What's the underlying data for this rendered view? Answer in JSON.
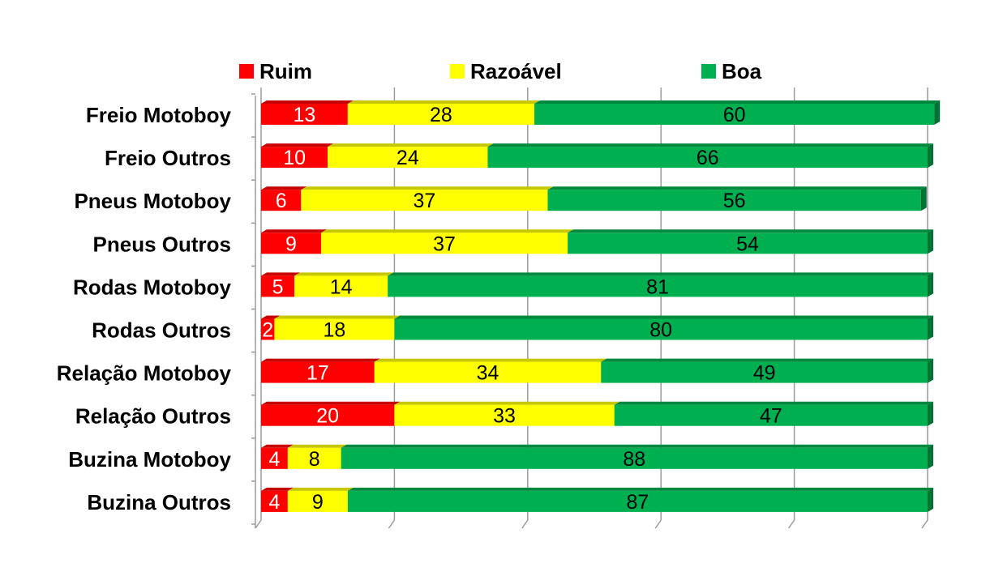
{
  "chart_data": {
    "type": "bar",
    "orientation": "horizontal",
    "stacked": true,
    "categories": [
      "Freio Motoboy",
      "Freio Outros",
      "Pneus Motoboy",
      "Pneus Outros",
      "Rodas Motoboy",
      "Rodas Outros",
      "Relação Motoboy",
      "Relação Outros",
      "Buzina Motoboy",
      "Buzina Outros"
    ],
    "series": [
      {
        "name": "Ruim",
        "color": "#ff0000",
        "label_color": "#ffffff",
        "values": [
          13,
          10,
          6,
          9,
          5,
          2,
          17,
          20,
          4,
          4
        ]
      },
      {
        "name": "Razoável",
        "color": "#ffff00",
        "label_color": "#000000",
        "values": [
          28,
          24,
          37,
          37,
          14,
          18,
          34,
          33,
          8,
          9
        ]
      },
      {
        "name": "Boa",
        "color": "#00b050",
        "label_color": "#000000",
        "values": [
          60,
          66,
          56,
          54,
          81,
          80,
          49,
          47,
          88,
          87
        ]
      }
    ],
    "xlim": [
      0,
      100
    ],
    "grid": true,
    "legend_position": "top"
  }
}
